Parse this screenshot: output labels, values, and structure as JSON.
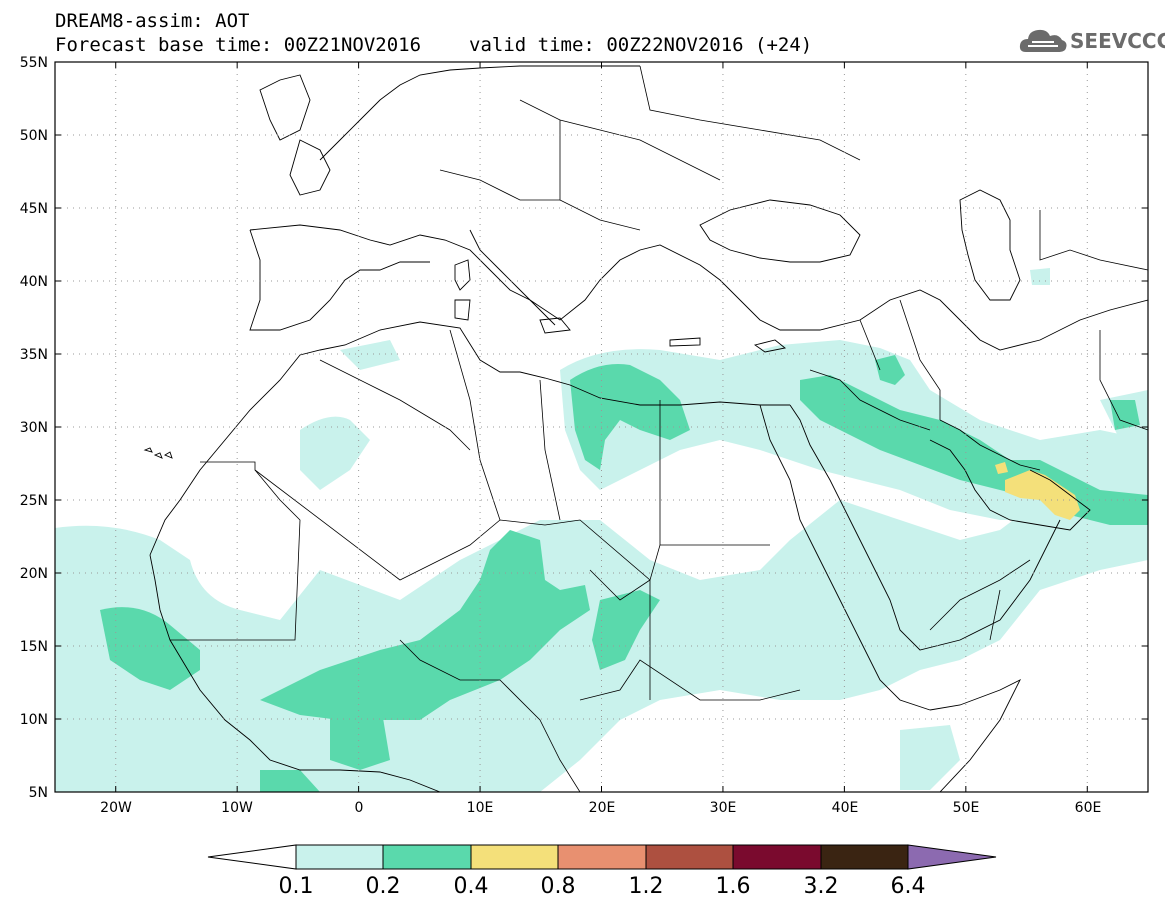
{
  "header": {
    "model_line": "DREAM8-assim: AOT",
    "base_time": "Forecast base time: 00Z21NOV2016",
    "valid_time": "valid time: 00Z22NOV2016 (+24)"
  },
  "logo": {
    "text": "SEEVCCC",
    "icon": "cloud-logo-icon"
  },
  "map": {
    "lat_labels": [
      "55N",
      "50N",
      "45N",
      "40N",
      "35N",
      "30N",
      "25N",
      "20N",
      "15N",
      "10N",
      "5N"
    ],
    "lon_labels": [
      "20W",
      "10W",
      "0",
      "10E",
      "20E",
      "30E",
      "40E",
      "50E",
      "60E"
    ],
    "lat_values": [
      55,
      50,
      45,
      40,
      35,
      30,
      25,
      20,
      15,
      10,
      5
    ],
    "lon_values": [
      -20,
      -10,
      0,
      10,
      20,
      30,
      40,
      50,
      60
    ],
    "extent": {
      "lon_min": -25,
      "lon_max": 65,
      "lat_min": 5,
      "lat_max": 55
    },
    "gridlines": "dotted"
  },
  "colorbar": {
    "labels": [
      "0.1",
      "0.2",
      "0.4",
      "0.8",
      "1.2",
      "1.6",
      "3.2",
      "6.4"
    ],
    "colors": [
      "#ffffff",
      "#c9f2ec",
      "#5ad9ac",
      "#f4e07a",
      "#e89070",
      "#ad5040",
      "#7a0a2e",
      "#3a2412",
      "#8c6ab0"
    ]
  }
}
